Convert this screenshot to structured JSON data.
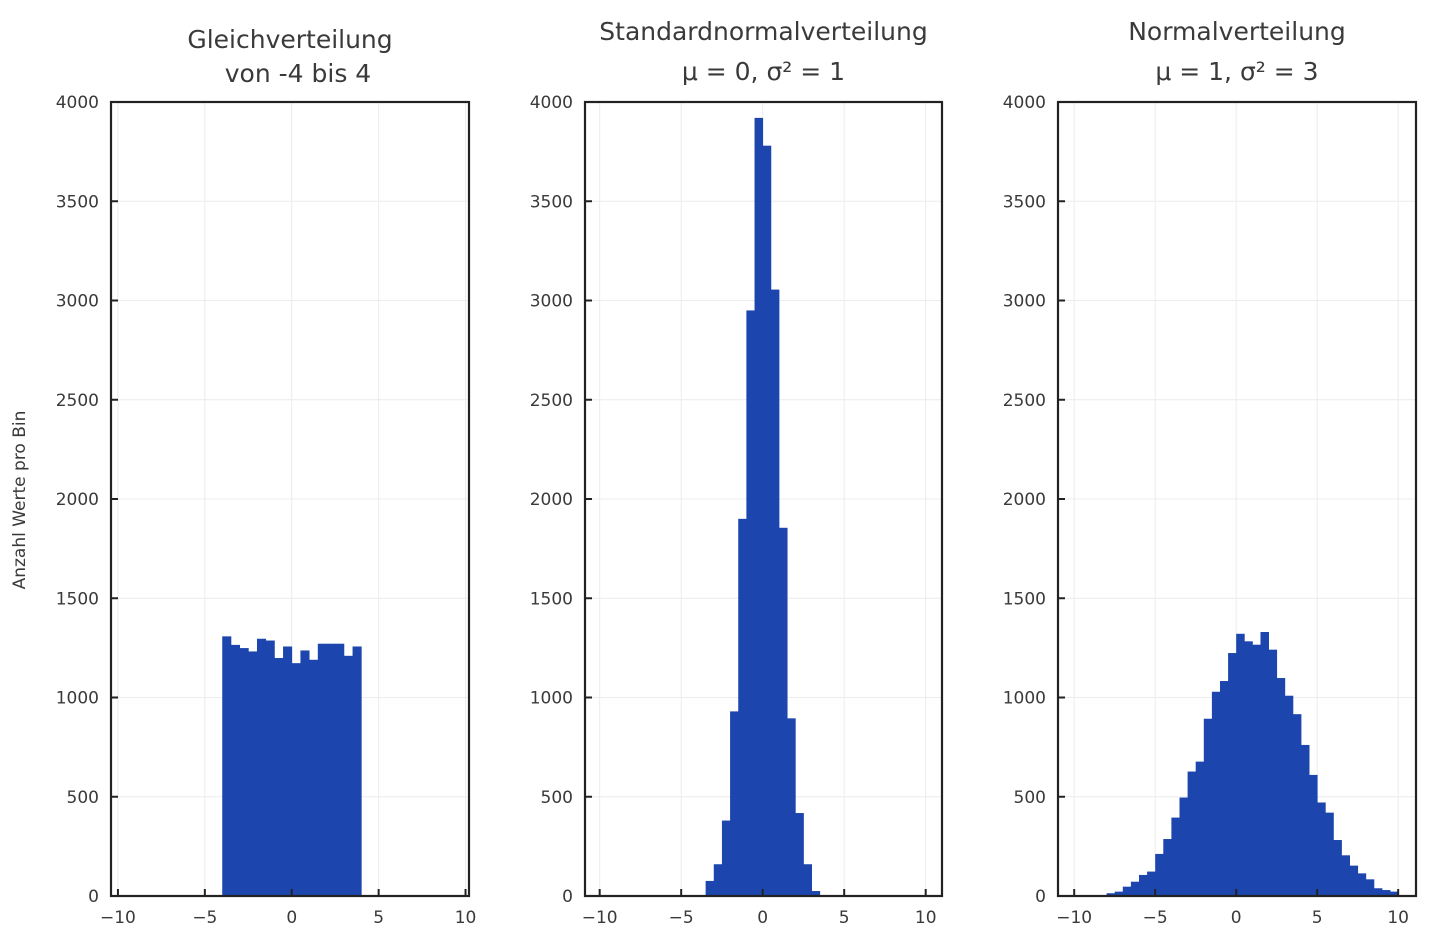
{
  "chart_data": [
    {
      "type": "bar",
      "title_line1": "Gleichverteilung",
      "title_line2": "von -4 bis 4",
      "xlabel": "",
      "ylabel": "Anzahl Werte pro Bin",
      "xlim": [
        -10.4,
        10.2
      ],
      "ylim": [
        0,
        4000
      ],
      "bin_start": -4,
      "bin_width": 0.5,
      "values": [
        1308,
        1265,
        1249,
        1232,
        1296,
        1287,
        1199,
        1257,
        1173,
        1237,
        1190,
        1271,
        1271,
        1271,
        1210,
        1257
      ],
      "xticks": [
        -10,
        -5,
        0,
        5,
        10
      ],
      "xtick_labels": [
        "−10",
        "−5",
        "0",
        "5",
        "10"
      ],
      "yticks": [
        0,
        500,
        1000,
        1500,
        2000,
        2500,
        3000,
        3500,
        4000
      ],
      "ytick_labels": [
        "0",
        "500",
        "1000",
        "1500",
        "2000",
        "2500",
        "3000",
        "3500",
        "4000"
      ],
      "grid": true
    },
    {
      "type": "bar",
      "title_line1": "Standardnormalverteilung",
      "title_line2": "μ = 0, σ² = 1",
      "xlabel": "",
      "ylabel": "",
      "xlim": [
        -10.9,
        11.0
      ],
      "ylim": [
        0,
        4000
      ],
      "bin_start": -3.5,
      "bin_width": 0.5,
      "values": [
        76,
        160,
        380,
        930,
        1900,
        2950,
        3920,
        3780,
        3055,
        1855,
        895,
        418,
        160,
        25
      ],
      "xticks": [
        -10,
        -5,
        0,
        5,
        10
      ],
      "xtick_labels": [
        "−10",
        "−5",
        "0",
        "5",
        "10"
      ],
      "yticks": [
        0,
        500,
        1000,
        1500,
        2000,
        2500,
        3000,
        3500,
        4000
      ],
      "ytick_labels": [
        "0",
        "500",
        "1000",
        "1500",
        "2000",
        "2500",
        "3000",
        "3500",
        "4000"
      ],
      "grid": true
    },
    {
      "type": "bar",
      "title_line1": "Normalverteilung",
      "title_line2": "μ = 1, σ² = 3",
      "xlabel": "",
      "ylabel": "",
      "xlim": [
        -11.0,
        11.1
      ],
      "ylim": [
        0,
        4000
      ],
      "bin_start": -8,
      "bin_width": 0.5,
      "values": [
        14,
        22,
        47,
        72,
        106,
        123,
        212,
        287,
        395,
        496,
        627,
        677,
        893,
        1029,
        1083,
        1224,
        1321,
        1283,
        1266,
        1330,
        1241,
        1098,
        1009,
        916,
        761,
        610,
        471,
        420,
        282,
        205,
        153,
        114,
        84,
        39,
        30,
        22
      ],
      "xticks": [
        -10,
        -5,
        0,
        5,
        10
      ],
      "xtick_labels": [
        "−10",
        "−5",
        "0",
        "5",
        "10"
      ],
      "yticks": [
        0,
        500,
        1000,
        1500,
        2000,
        2500,
        3000,
        3500,
        4000
      ],
      "ytick_labels": [
        "0",
        "500",
        "1000",
        "1500",
        "2000",
        "2500",
        "3000",
        "3500",
        "4000"
      ],
      "grid": true
    }
  ],
  "colors": {
    "bar": "#1c45ad",
    "axis": "#222222",
    "grid": "#ececec"
  }
}
